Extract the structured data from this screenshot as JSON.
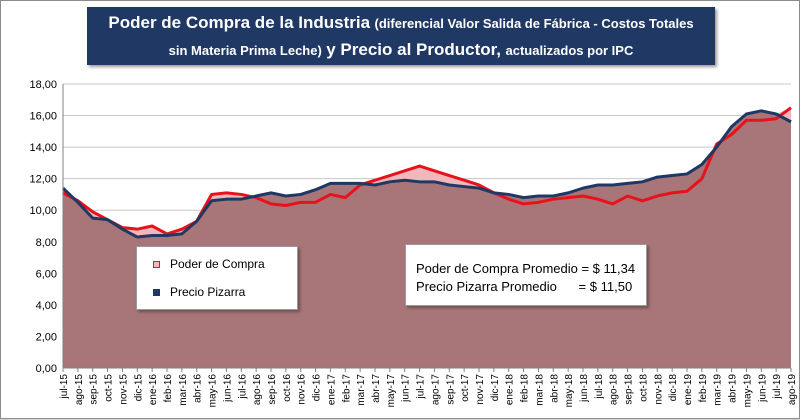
{
  "title": {
    "main1": "Poder de Compra de la Industria",
    "paren1": "(diferencial Valor Salida de Fábrica - Costos Totales",
    "paren2": "sin Materia Prima Leche)",
    "main2": "y Precio al Productor,",
    "suffix": "actualizados por IPC"
  },
  "legend": {
    "poder_label": "Poder de Compra",
    "precio_label": "Precio Pizarra"
  },
  "stats": {
    "line1": "Poder de Compra Promedio = $ 11,34",
    "line2": "Precio Pizarra Promedio      = $ 11,50"
  },
  "colors": {
    "poder": "#e8121b",
    "poder_fill": "#f0b8bc",
    "precio": "#1f3864",
    "area_fill": "#a87678",
    "gridline": "#c8c8c8"
  },
  "chart_data": {
    "type": "area",
    "title": "Poder de Compra de la Industria (diferencial Valor Salida de Fábrica - Costos Totales sin Materia Prima Leche) y Precio al Productor, actualizados por IPC",
    "xlabel": "",
    "ylabel": "",
    "ylim": [
      0,
      18
    ],
    "yticks": [
      "0,00",
      "2,00",
      "4,00",
      "6,00",
      "8,00",
      "10,00",
      "12,00",
      "14,00",
      "16,00",
      "18,00"
    ],
    "grid": true,
    "legend_position": "lower-left inside",
    "categories": [
      "jul-15",
      "ago-15",
      "sep-15",
      "oct-15",
      "nov-15",
      "dic-15",
      "ene-16",
      "feb-16",
      "mar-16",
      "abr-16",
      "may-16",
      "jun-16",
      "jul-16",
      "ago-16",
      "sep-16",
      "oct-16",
      "nov-16",
      "dic-16",
      "ene-17",
      "feb-17",
      "mar-17",
      "abr-17",
      "may-17",
      "jun-17",
      "jul-17",
      "ago-17",
      "sep-17",
      "oct-17",
      "nov-17",
      "dic-17",
      "ene-18",
      "feb-18",
      "mar-18",
      "abr-18",
      "may-18",
      "jun-18",
      "jul-18",
      "ago-18",
      "sep-18",
      "oct-18",
      "nov-18",
      "dic-18",
      "ene-19",
      "feb-19",
      "mar-19",
      "abr-19",
      "may-19",
      "jun-19",
      "jul-19",
      "ago-19"
    ],
    "series": [
      {
        "name": "Poder de Compra",
        "values": [
          11.1,
          10.6,
          9.9,
          9.4,
          8.9,
          8.8,
          9.0,
          8.5,
          8.8,
          9.3,
          11.0,
          11.1,
          11.0,
          10.8,
          10.4,
          10.3,
          10.5,
          10.5,
          11.0,
          10.8,
          11.6,
          11.9,
          12.2,
          12.5,
          12.8,
          12.5,
          12.2,
          11.9,
          11.6,
          11.1,
          10.7,
          10.4,
          10.5,
          10.7,
          10.8,
          10.9,
          10.7,
          10.4,
          10.9,
          10.6,
          10.9,
          11.1,
          11.2,
          12.0,
          14.2,
          14.8,
          15.7,
          15.7,
          15.8,
          16.5
        ]
      },
      {
        "name": "Precio Pizarra",
        "values": [
          11.4,
          10.5,
          9.5,
          9.4,
          8.8,
          8.3,
          8.4,
          8.4,
          8.5,
          9.3,
          10.6,
          10.7,
          10.7,
          10.9,
          11.1,
          10.9,
          11.0,
          11.3,
          11.7,
          11.7,
          11.7,
          11.6,
          11.8,
          11.9,
          11.8,
          11.8,
          11.6,
          11.5,
          11.4,
          11.1,
          11.0,
          10.8,
          10.9,
          10.9,
          11.1,
          11.4,
          11.6,
          11.6,
          11.7,
          11.8,
          12.1,
          12.2,
          12.3,
          12.9,
          14.0,
          15.3,
          16.1,
          16.3,
          16.1,
          15.6
        ]
      }
    ]
  }
}
